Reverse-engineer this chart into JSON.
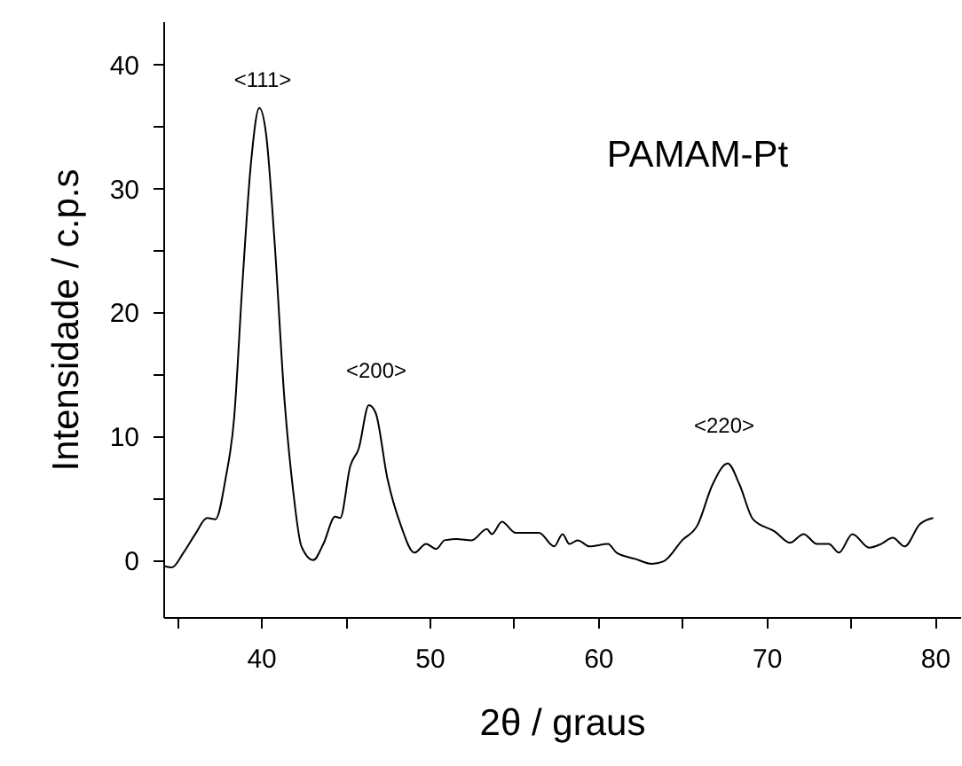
{
  "chart_data": {
    "type": "line",
    "xlabel": "2θ / graus",
    "ylabel": "Intensidade / c.p.s",
    "annotations": [
      "PAMAM-Pt",
      "<111>",
      "<200>",
      "<220>"
    ],
    "x": [
      34.3,
      34.7,
      35.4,
      36.1,
      36.8,
      37.3,
      37.9,
      38.4,
      38.9,
      39.4,
      39.9,
      40.3,
      40.8,
      41.4,
      41.9,
      42.4,
      43.1,
      43.7,
      44.4,
      44.7,
      45.3,
      45.8,
      46.4,
      46.8,
      47.5,
      48.3,
      49.1,
      49.8,
      50.4,
      50.9,
      51.6,
      52.5,
      53.4,
      53.7,
      54.3,
      55.1,
      56.5,
      57.4,
      57.9,
      58.3,
      58.8,
      59.5,
      60.6,
      61.1,
      62.2,
      63.2,
      63.9,
      65.0,
      65.9,
      66.8,
      67.7,
      68.4,
      69.2,
      70.5,
      71.4,
      72.2,
      73.0,
      73.7,
      74.3,
      75.1,
      76.1,
      76.8,
      77.5,
      78.2,
      79.1,
      79.9
    ],
    "series": [
      {
        "color": "#000000",
        "values": [
          -0.5,
          -0.6,
          0.6,
          2.1,
          3.4,
          3.3,
          6.6,
          11.4,
          22.4,
          32.0,
          36.5,
          34.4,
          25.8,
          12.8,
          5.7,
          1.1,
          0.0,
          1.3,
          3.5,
          3.4,
          7.6,
          9.0,
          12.5,
          11.9,
          6.6,
          2.8,
          0.6,
          1.3,
          0.9,
          1.6,
          1.7,
          1.6,
          2.5,
          2.1,
          3.1,
          2.2,
          2.2,
          1.1,
          2.1,
          1.3,
          1.6,
          1.1,
          1.3,
          0.6,
          0.1,
          -0.3,
          -0.1,
          1.6,
          2.8,
          6.1,
          7.8,
          6.1,
          3.3,
          2.3,
          1.4,
          2.1,
          1.3,
          1.3,
          0.6,
          2.1,
          1.0,
          1.3,
          1.8,
          1.1,
          2.9,
          3.4
        ]
      }
    ],
    "xlim": [
      34.2,
      81.5
    ],
    "xticks": [
      {
        "value": 35,
        "label": null
      },
      40,
      {
        "value": 45,
        "label": null
      },
      50,
      {
        "value": 55,
        "label": null
      },
      60,
      {
        "value": 65,
        "label": null
      },
      70,
      {
        "value": 75,
        "label": null
      },
      80
    ],
    "ylim": [
      -4.6,
      43.5
    ],
    "yticks": [
      0,
      {
        "value": 5,
        "label": null
      },
      10,
      {
        "value": 15,
        "label": null
      },
      20,
      {
        "value": 25,
        "label": null
      },
      30,
      {
        "value": 35,
        "label": null
      },
      40
    ],
    "grid": false,
    "marker": "none",
    "line_style": "solid"
  }
}
